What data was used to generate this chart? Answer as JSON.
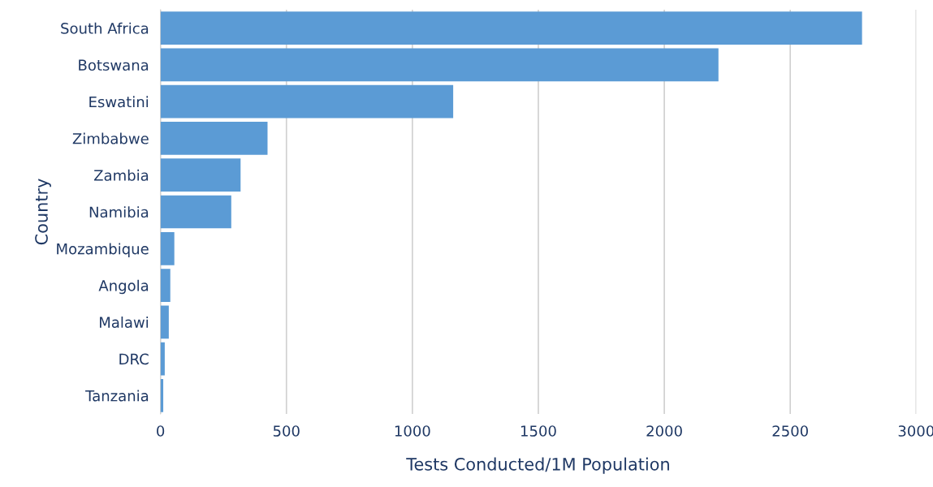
{
  "chart_data": {
    "type": "bar",
    "orientation": "horizontal",
    "xlabel": "Tests Conducted/1M Population",
    "ylabel": "Country",
    "categories": [
      "South Africa",
      "Botswana",
      "Eswatini",
      "Zimbabwe",
      "Zambia",
      "Namibia",
      "Mozambique",
      "Angola",
      "Malawi",
      "DRC",
      "Tanzania"
    ],
    "values": [
      2785,
      2215,
      1162,
      425,
      318,
      281,
      55,
      39,
      33,
      17,
      11
    ],
    "color": "#5b9bd5",
    "xlim": [
      0,
      3000
    ],
    "xticks": [
      0,
      500,
      1000,
      1500,
      2000,
      2500,
      3000
    ],
    "grid": "x"
  }
}
